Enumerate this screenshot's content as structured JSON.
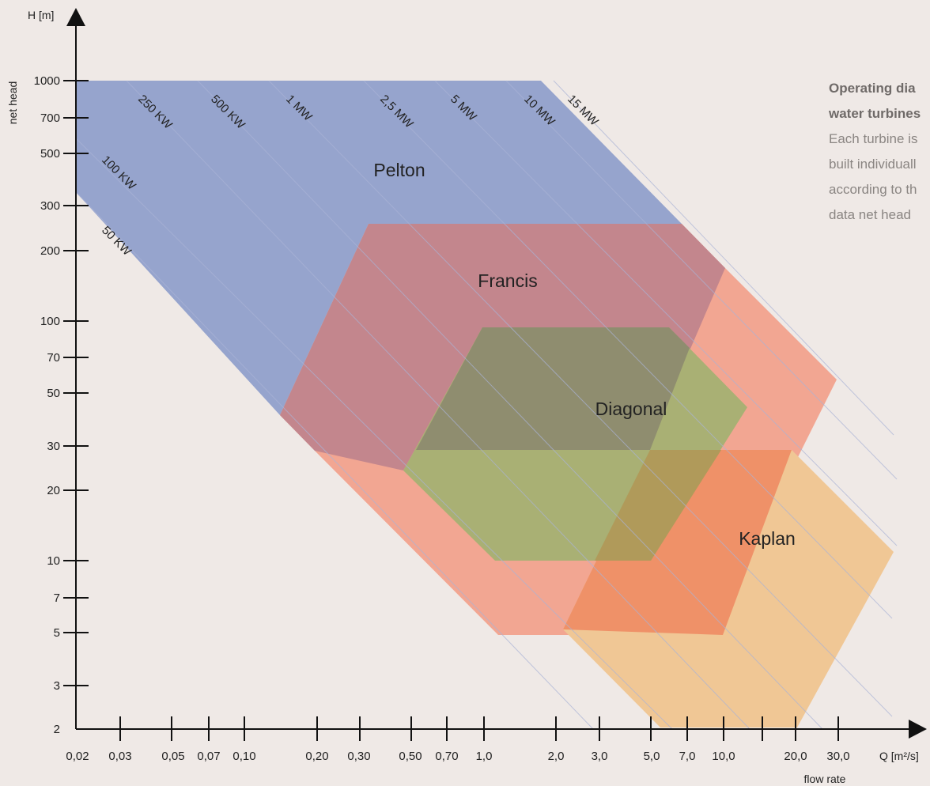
{
  "diagram": {
    "y_axis_symbol": "H [m]",
    "y_axis_name": "net head",
    "x_axis_symbol": "Q [m²/s]",
    "x_axis_name": "flow rate",
    "y_ticks": [
      "1000",
      "700",
      "500",
      "300",
      "200",
      "100",
      "70",
      "50",
      "30",
      "20",
      "10",
      "7",
      "5",
      "3",
      "2"
    ],
    "x_ticks": [
      "0,02",
      "0,03",
      "0,05",
      "0,07",
      "0,10",
      "0,20",
      "0,30",
      "0,50",
      "0,70",
      "1,0",
      "2,0",
      "3,0",
      "5,0",
      "7,0",
      "10,0",
      "20,0",
      "30,0"
    ],
    "power_lines": [
      "50 KW",
      "100 KW",
      "250 KW",
      "500 KW",
      "1 MW",
      "2,5 MW",
      "5 MW",
      "10 MW",
      "15 MW"
    ],
    "regions": [
      {
        "name": "Pelton",
        "color": "#96a4cd"
      },
      {
        "name": "Francis",
        "color": "#f2a692"
      },
      {
        "name": "Diagonal",
        "color": "#a9b074"
      },
      {
        "name": "Kaplan",
        "color": "#f0c795"
      }
    ]
  },
  "info": {
    "title_line1": "Operating dia",
    "title_line2": "water turbines",
    "body": [
      "Each turbine is",
      "built individuall",
      "according to th",
      "data net head"
    ]
  }
}
